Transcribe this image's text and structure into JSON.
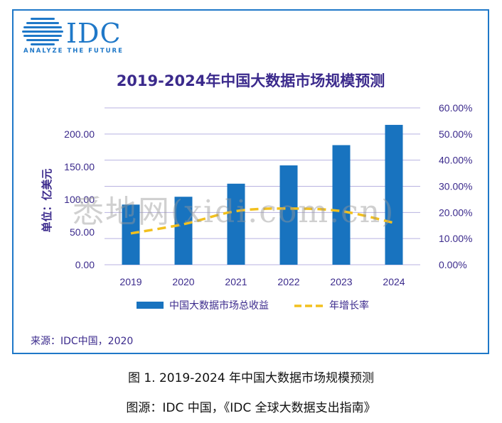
{
  "logo": {
    "word": "IDC",
    "tagline": "ANALYZE THE FUTURE"
  },
  "watermark": "悉地网(xidi.com.cn)",
  "source_label": "来源：IDC中国，2020",
  "captions": {
    "line1": "图 1. 2019-2024 年中国大数据市场规模预测",
    "line2": "图源：IDC 中国，《IDC 全球大数据支出指南》"
  },
  "colors": {
    "bar": "#1873bf",
    "line": "#f2c01e",
    "grid": "#b8b2e0",
    "text": "#3b2a8c",
    "frame": "#1f78c8"
  },
  "chart_data": {
    "type": "bar",
    "title": "2019-2024年中国大数据市场规模预测",
    "ylabel": "单位：亿美元",
    "categories": [
      "2019",
      "2020",
      "2021",
      "2022",
      "2023",
      "2024"
    ],
    "ylim": [
      0,
      200
    ],
    "y_ticks": [
      "0.00",
      "50.00",
      "100.00",
      "150.00",
      "200.00"
    ],
    "y2lim": [
      0,
      60
    ],
    "y2_ticks": [
      "0.00%",
      "10.00%",
      "20.00%",
      "30.00%",
      "40.00%",
      "50.00%",
      "60.00%"
    ],
    "series": [
      {
        "name": "中国大数据市场总收益",
        "type": "bar",
        "values": [
          92,
          104,
          124,
          152,
          183,
          214
        ]
      },
      {
        "name": "年增长率",
        "type": "line",
        "axis": "right",
        "style": "dashed",
        "values": [
          12,
          15.5,
          20.5,
          21.5,
          20.5,
          16
        ]
      }
    ],
    "legend_position": "bottom",
    "grid": true
  }
}
